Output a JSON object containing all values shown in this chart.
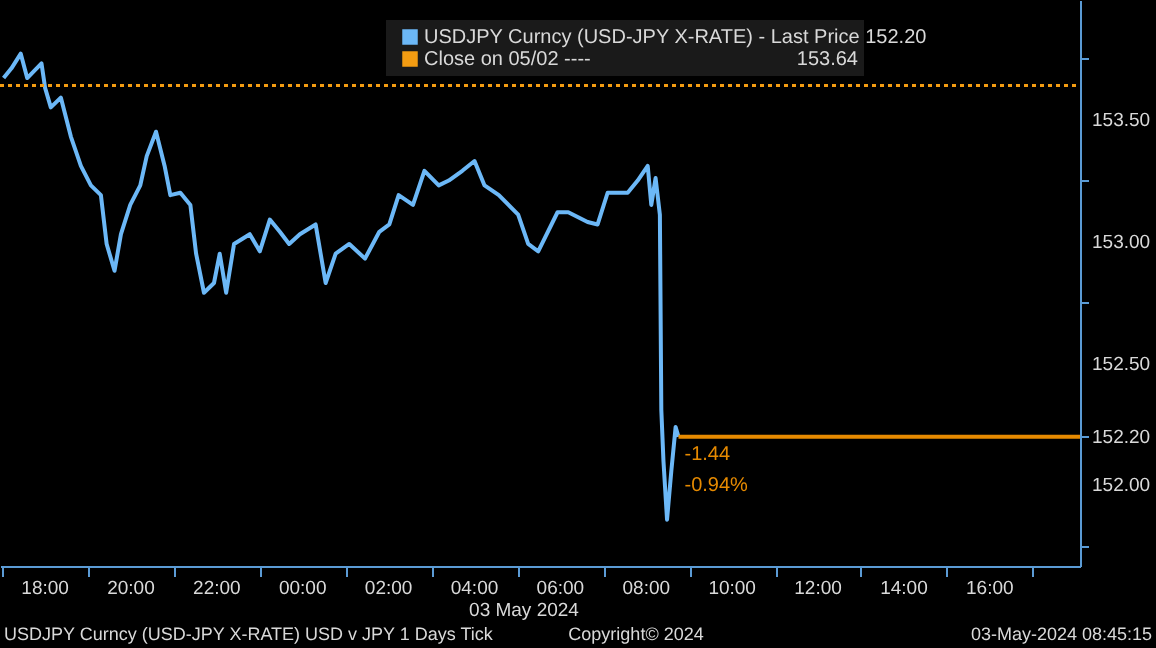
{
  "chart_data": {
    "type": "line",
    "xlabel": "03 May 2024",
    "xlim": [
      "2024-05-02T16:57",
      "2024-05-03T18:06"
    ],
    "ylim": [
      151.67,
      153.99
    ],
    "xticks": [
      {
        "value": "2024-05-02T17:00",
        "label": null
      },
      {
        "value": "2024-05-02T18:00",
        "label": "18:00"
      },
      {
        "value": "2024-05-02T19:00",
        "label": null
      },
      {
        "value": "2024-05-02T20:00",
        "label": "20:00"
      },
      {
        "value": "2024-05-02T21:00",
        "label": null
      },
      {
        "value": "2024-05-02T22:00",
        "label": "22:00"
      },
      {
        "value": "2024-05-02T23:00",
        "label": null
      },
      {
        "value": "2024-05-03T00:00",
        "label": "00:00"
      },
      {
        "value": "2024-05-03T01:00",
        "label": null
      },
      {
        "value": "2024-05-03T02:00",
        "label": "02:00"
      },
      {
        "value": "2024-05-03T03:00",
        "label": null
      },
      {
        "value": "2024-05-03T04:00",
        "label": "04:00"
      },
      {
        "value": "2024-05-03T05:00",
        "label": null
      },
      {
        "value": "2024-05-03T06:00",
        "label": "06:00"
      },
      {
        "value": "2024-05-03T07:00",
        "label": null
      },
      {
        "value": "2024-05-03T08:00",
        "label": "08:00"
      },
      {
        "value": "2024-05-03T09:00",
        "label": null
      },
      {
        "value": "2024-05-03T10:00",
        "label": "10:00"
      },
      {
        "value": "2024-05-03T11:00",
        "label": null
      },
      {
        "value": "2024-05-03T12:00",
        "label": "12:00"
      },
      {
        "value": "2024-05-03T13:00",
        "label": null
      },
      {
        "value": "2024-05-03T14:00",
        "label": "14:00"
      },
      {
        "value": "2024-05-03T15:00",
        "label": null
      },
      {
        "value": "2024-05-03T16:00",
        "label": "16:00"
      },
      {
        "value": "2024-05-03T17:00",
        "label": null
      }
    ],
    "yticks": [
      {
        "value": 151.75,
        "label": null
      },
      {
        "value": 152.0,
        "label": "152.00"
      },
      {
        "value": 152.2,
        "label": "152.20"
      },
      {
        "value": 152.5,
        "label": "152.50"
      },
      {
        "value": 152.75,
        "label": null
      },
      {
        "value": 153.0,
        "label": "153.00"
      },
      {
        "value": 153.25,
        "label": null
      },
      {
        "value": 153.5,
        "label": "153.50"
      },
      {
        "value": 153.75,
        "label": null
      }
    ],
    "grid": false,
    "legend": "top right",
    "marker": "none",
    "line_style": "solid",
    "series": [
      {
        "name": "USDJPY Curncy (USD-JPY X-RATE) - Last Price 152.20",
        "color": "#6cb8f7",
        "x": [
          "2024-05-02T17:02",
          "2024-05-02T17:13",
          "2024-05-02T17:26",
          "2024-05-02T17:35",
          "2024-05-02T17:55",
          "2024-05-02T18:00",
          "2024-05-02T18:08",
          "2024-05-02T18:22",
          "2024-05-02T18:36",
          "2024-05-02T18:50",
          "2024-05-02T19:04",
          "2024-05-02T19:18",
          "2024-05-02T19:26",
          "2024-05-02T19:37",
          "2024-05-02T19:46",
          "2024-05-02T19:59",
          "2024-05-02T20:13",
          "2024-05-02T20:22",
          "2024-05-02T20:35",
          "2024-05-02T20:47",
          "2024-05-02T20:55",
          "2024-05-02T21:09",
          "2024-05-02T21:23",
          "2024-05-02T21:31",
          "2024-05-02T21:42",
          "2024-05-02T21:56",
          "2024-05-02T22:04",
          "2024-05-02T22:13",
          "2024-05-02T22:24",
          "2024-05-02T22:46",
          "2024-05-02T23:00",
          "2024-05-02T23:14",
          "2024-05-02T23:28",
          "2024-05-02T23:41",
          "2024-05-02T23:56",
          "2024-05-03T00:18",
          "2024-05-03T00:32",
          "2024-05-03T00:46",
          "2024-05-03T01:05",
          "2024-05-03T01:27",
          "2024-05-03T01:47",
          "2024-05-03T02:01",
          "2024-05-03T02:14",
          "2024-05-03T02:34",
          "2024-05-03T02:50",
          "2024-05-03T03:10",
          "2024-05-03T03:24",
          "2024-05-03T03:43",
          "2024-05-03T04:00",
          "2024-05-03T04:14",
          "2024-05-03T04:34",
          "2024-05-03T05:01",
          "2024-05-03T05:15",
          "2024-05-03T05:29",
          "2024-05-03T05:56",
          "2024-05-03T06:11",
          "2024-05-03T06:38",
          "2024-05-03T06:52",
          "2024-05-03T07:06",
          "2024-05-03T07:34",
          "2024-05-03T07:48",
          "2024-05-03T08:02",
          "2024-05-03T08:07",
          "2024-05-03T08:13",
          "2024-05-03T08:19",
          "2024-05-03T08:21",
          "2024-05-03T08:24",
          "2024-05-03T08:29",
          "2024-05-03T08:35",
          "2024-05-03T08:41",
          "2024-05-03T08:45"
        ],
        "values": [
          153.67,
          153.71,
          153.77,
          153.67,
          153.73,
          153.63,
          153.55,
          153.59,
          153.43,
          153.31,
          153.23,
          153.19,
          152.99,
          152.88,
          153.03,
          153.15,
          153.23,
          153.35,
          153.45,
          153.31,
          153.19,
          153.2,
          153.15,
          152.95,
          152.79,
          152.83,
          152.95,
          152.79,
          152.99,
          153.03,
          152.96,
          153.09,
          153.04,
          152.99,
          153.03,
          153.07,
          152.83,
          152.95,
          152.99,
          152.93,
          153.04,
          153.07,
          153.19,
          153.15,
          153.29,
          153.23,
          153.25,
          153.29,
          153.33,
          153.23,
          153.19,
          153.11,
          152.99,
          152.96,
          153.12,
          153.12,
          153.08,
          153.07,
          153.2,
          153.2,
          153.25,
          153.31,
          153.15,
          153.26,
          153.11,
          152.31,
          152.1,
          151.86,
          152.06,
          152.24,
          152.2
        ]
      },
      {
        "name": "Close on 05/02 ---- 153.64",
        "color": "#f39c12",
        "line_style": "dotted",
        "x": [
          "2024-05-02T16:57",
          "2024-05-03T18:06"
        ],
        "values": [
          153.64,
          153.64
        ]
      },
      {
        "color": "#e68a00",
        "x": [
          "2024-05-03T08:45",
          "2024-05-03T18:06"
        ],
        "values": [
          152.2,
          152.2
        ]
      }
    ],
    "annotations": [
      {
        "text": "-1.44",
        "x": "2024-05-03T08:45",
        "y": 152.13
      },
      {
        "text": "-0.94%",
        "x": "2024-05-03T08:45",
        "y": 152.0
      },
      "USDJPY Curncy (USD-JPY X-RATE) USD v JPY 1 Days  Tick",
      "Copyright© 2024",
      "03-May-2024 08:45:15"
    ]
  }
}
